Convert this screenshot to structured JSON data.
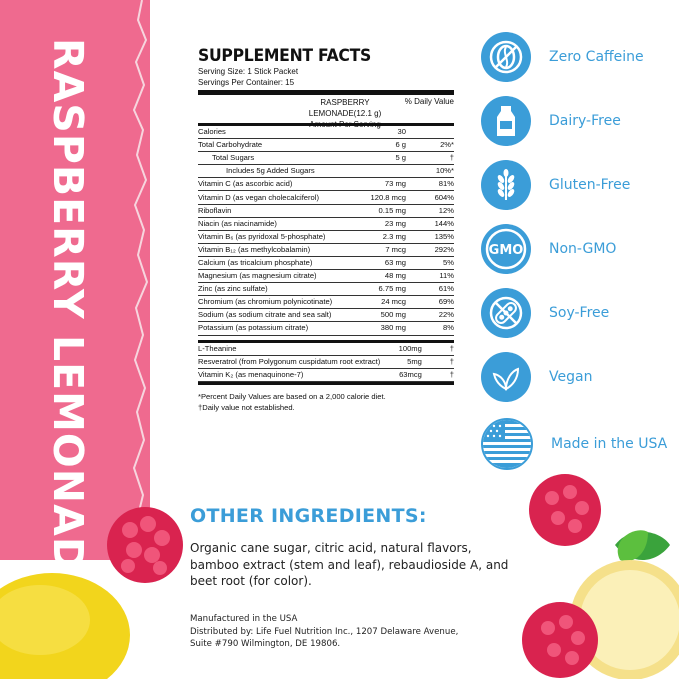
{
  "side_title": "RASPBERRY LEMONADE",
  "facts": {
    "title": "SUPPLEMENT FACTS",
    "serving_size": "Serving Size: 1 Stick Packet",
    "servings_per_container": "Servings Per Container: 15",
    "product_header": "RASPBERRY LEMONADE(12.1 g)",
    "amount_per_serving": "Amount Per Serving",
    "dv_header": "% Daily Value",
    "rows": [
      {
        "name": "Calories",
        "amount": "30",
        "dv": ""
      },
      {
        "name": "Total Carbohydrate",
        "amount": "6 g",
        "dv": "2%*"
      },
      {
        "name": "Total Sugars",
        "amount": "5 g",
        "dv": "†"
      },
      {
        "name": "Includes 5g Added Sugars",
        "amount": "",
        "dv": "10%*"
      },
      {
        "name": "Vitamin C (as ascorbic acid)",
        "amount": "73 mg",
        "dv": "81%"
      },
      {
        "name": "Vitamin D (as vegan cholecalciferol)",
        "amount": "120.8 mcg",
        "dv": "604%"
      },
      {
        "name": "Riboflavin",
        "amount": "0.15 mg",
        "dv": "12%"
      },
      {
        "name": "Niacin (as niacinamide)",
        "amount": "23 mg",
        "dv": "144%"
      },
      {
        "name": "Vitamin B₆ (as pyridoxal 5-phosphate)",
        "amount": "2.3 mg",
        "dv": "135%"
      },
      {
        "name": "Vitamin B₁₂ (as methylcobalamin)",
        "amount": "7 mcg",
        "dv": "292%"
      },
      {
        "name": "Calcium (as tricalcium phosphate)",
        "amount": "63 mg",
        "dv": "5%"
      },
      {
        "name": "Magnesium (as magnesium citrate)",
        "amount": "48 mg",
        "dv": "11%"
      },
      {
        "name": "Zinc (as zinc sulfate)",
        "amount": "6.75 mg",
        "dv": "61%"
      },
      {
        "name": "Chromium (as chromium polynicotinate)",
        "amount": "24 mcg",
        "dv": "69%"
      },
      {
        "name": "Sodium (as sodium citrate and sea salt)",
        "amount": "500 mg",
        "dv": "22%"
      },
      {
        "name": "Potassium (as potassium citrate)",
        "amount": "380 mg",
        "dv": "8%"
      }
    ],
    "other_rows": [
      {
        "name": "L-Theanine",
        "amount": "100mg",
        "dv": "†"
      },
      {
        "name": "Resveratrol (from Polygonum cuspidatum root extract)",
        "amount": "5mg",
        "dv": "†"
      },
      {
        "name": "Vitamin K₂ (as menaquinone-7)",
        "amount": "63mcg",
        "dv": "†"
      }
    ],
    "footnote1": "*Percent Daily Values are based on a 2,000 calorie diet.",
    "footnote2": "†Daily value not established."
  },
  "badges": [
    {
      "icon": "no-caffeine-icon",
      "label": "Zero Caffeine"
    },
    {
      "icon": "milk-bottle-icon",
      "label": "Dairy-Free"
    },
    {
      "icon": "wheat-icon",
      "label": "Gluten-Free"
    },
    {
      "icon": "gmo-icon",
      "label": "Non-GMO",
      "icon_text": "GMO"
    },
    {
      "icon": "soybean-icon",
      "label": "Soy-Free"
    },
    {
      "icon": "leaf-icon",
      "label": "Vegan"
    },
    {
      "icon": "us-flag-icon",
      "label": "Made in the USA"
    }
  ],
  "other_ingredients": {
    "title": "OTHER INGREDIENTS:",
    "text": "Organic cane sugar, citric acid, natural flavors, bamboo extract (stem and leaf), rebaudioside A, and beet root (for color)."
  },
  "manufacturer": {
    "line1": "Manufactured in the USA",
    "line2": "Distributed by: Life Fuel Nutrition Inc., 1207 Delaware Avenue,",
    "line3": "Suite #790 Wilmington, DE 19806."
  },
  "colors": {
    "pink": "#ef6a8f",
    "blue": "#3b9dd8"
  }
}
